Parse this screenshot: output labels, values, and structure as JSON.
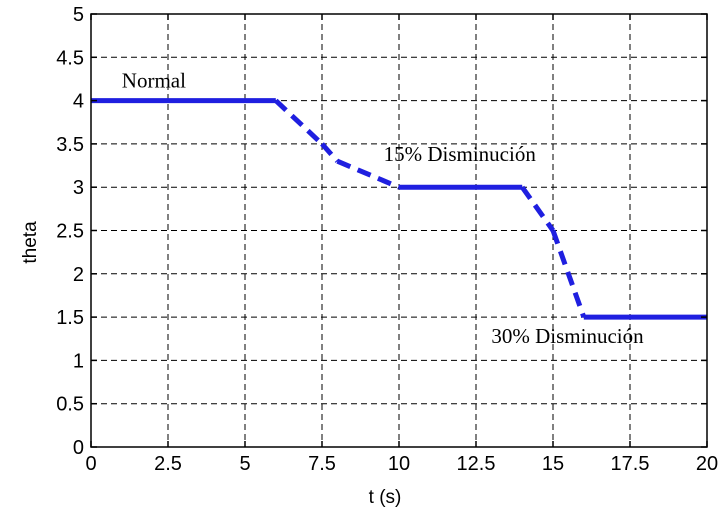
{
  "chart_data": {
    "type": "line",
    "title": "",
    "xlabel": "t (s)",
    "ylabel": "theta",
    "xlim": [
      0,
      20
    ],
    "ylim": [
      0,
      5
    ],
    "xticks": [
      0,
      2.5,
      5,
      7.5,
      10,
      12.5,
      15,
      17.5,
      20
    ],
    "xtick_labels": [
      "0",
      "2.5",
      "5",
      "7.5",
      "10",
      "12.5",
      "15",
      "17.5",
      "20"
    ],
    "yticks": [
      0,
      0.5,
      1,
      1.5,
      2,
      2.5,
      3,
      3.5,
      4,
      4.5,
      5
    ],
    "ytick_labels": [
      "0",
      "0.5",
      "1",
      "1.5",
      "2",
      "2.5",
      "3",
      "3.5",
      "4",
      "4.5",
      "5"
    ],
    "grid": true,
    "series": [
      {
        "color": "#1f1fe0",
        "x": [
          0,
          6,
          7.5,
          8,
          10,
          14,
          15,
          16,
          20
        ],
        "y": [
          4,
          4,
          3.5,
          3.3,
          3,
          3,
          2.5,
          1.5,
          1.5
        ],
        "segment_styles": [
          "solid",
          "dashed",
          "dashed",
          "dashed",
          "solid",
          "dashed",
          "dashed",
          "solid"
        ]
      }
    ],
    "annotations": [
      {
        "text": "Normal",
        "x": 1,
        "y": 4.15
      },
      {
        "text": "15% Disminución",
        "x": 9.5,
        "y": 3.3
      },
      {
        "text": "30% Disminución",
        "x": 13,
        "y": 1.2
      }
    ]
  }
}
